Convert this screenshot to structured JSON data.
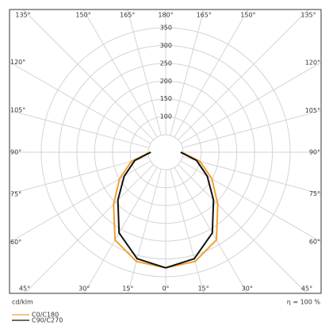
{
  "chart_data": {
    "type": "polar",
    "unit_label": "cd/klm",
    "efficiency": "η = 100 %",
    "rlim": [
      0,
      350
    ],
    "rticks": [
      100,
      150,
      200,
      250,
      300,
      350
    ],
    "angle_ticks": [
      {
        "value": 0,
        "label": "0°"
      },
      {
        "value": 15,
        "label": "15°"
      },
      {
        "value": 30,
        "label": "30°"
      },
      {
        "value": 45,
        "label": "45°"
      },
      {
        "value": 60,
        "label": "60°"
      },
      {
        "value": 75,
        "label": "75°"
      },
      {
        "value": 90,
        "label": "90°"
      },
      {
        "value": 105,
        "label": "105°"
      },
      {
        "value": 120,
        "label": "120°"
      },
      {
        "value": 135,
        "label": "135°"
      },
      {
        "value": 150,
        "label": "150°"
      },
      {
        "value": 165,
        "label": "165°"
      },
      {
        "value": 180,
        "label": "180°"
      }
    ],
    "angles": [
      0,
      15,
      30,
      45,
      60,
      75,
      90
    ],
    "series": [
      {
        "name": "C0/C180",
        "color": "#f0a030",
        "values": [
          325,
          318,
          285,
          207,
          150,
          100,
          45
        ]
      },
      {
        "name": "C90/C270",
        "color": "#111111",
        "values": [
          325,
          310,
          262,
          190,
          135,
          90,
          42
        ]
      }
    ]
  }
}
